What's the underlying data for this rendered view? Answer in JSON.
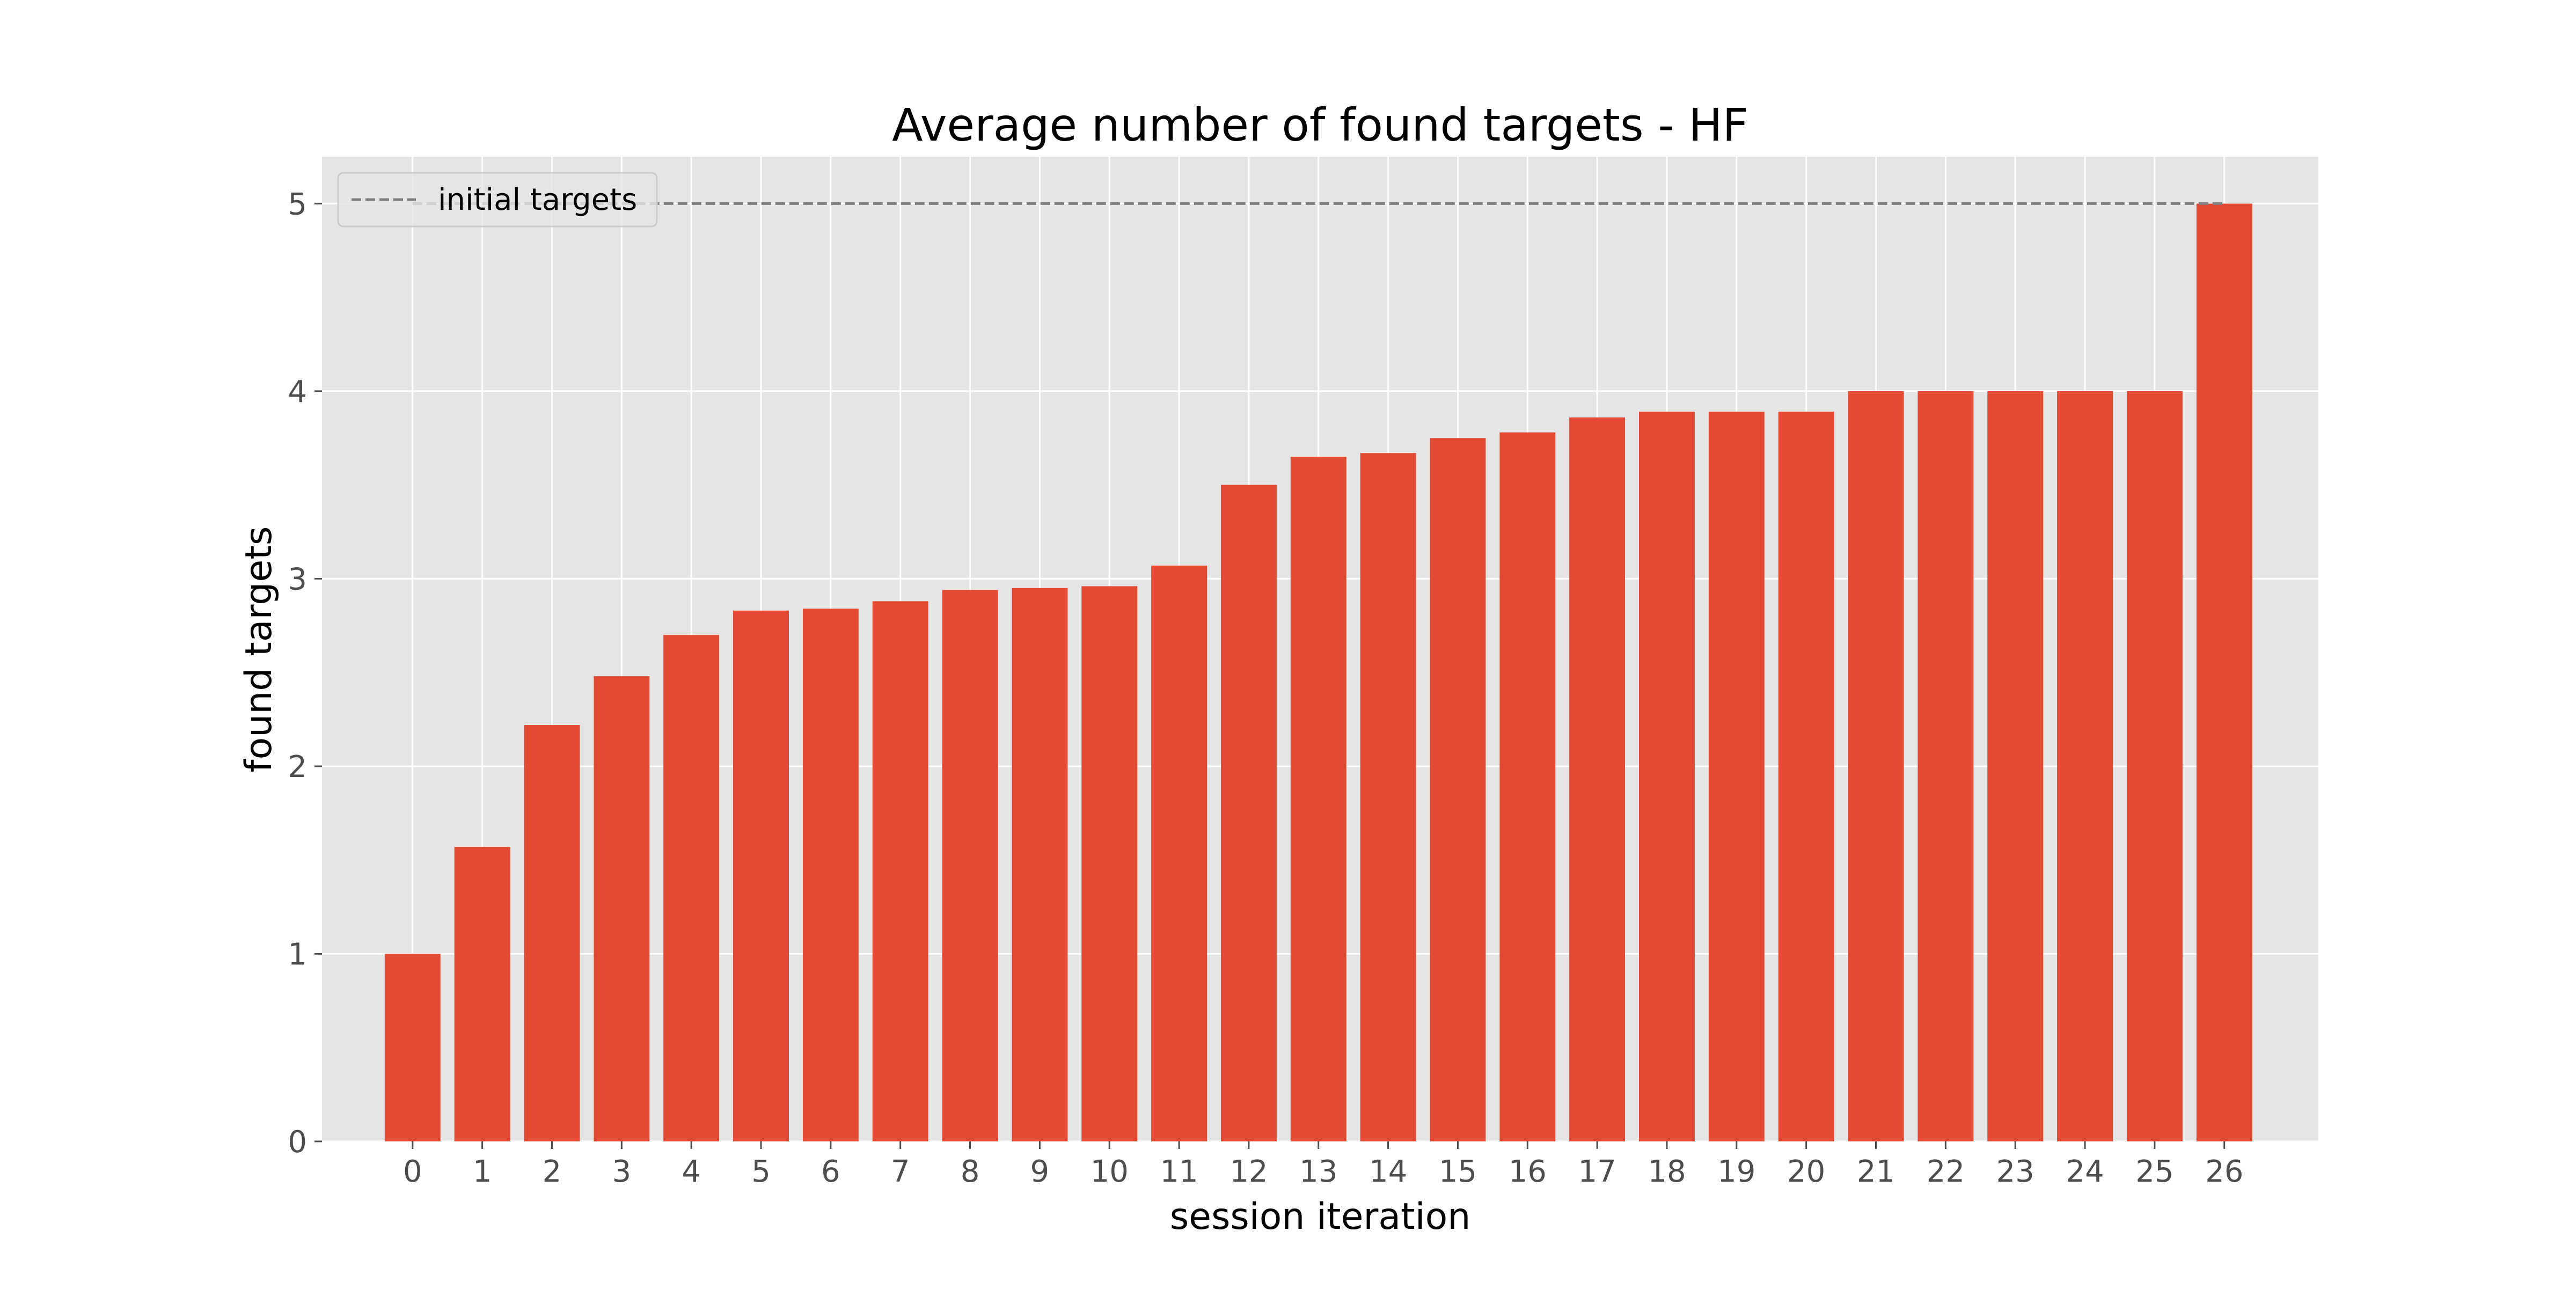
{
  "chart_data": {
    "type": "bar",
    "title": "Average number of found targets - HF",
    "xlabel": "session iteration",
    "ylabel": "found targets",
    "categories": [
      "0",
      "1",
      "2",
      "3",
      "4",
      "5",
      "6",
      "7",
      "8",
      "9",
      "10",
      "11",
      "12",
      "13",
      "14",
      "15",
      "16",
      "17",
      "18",
      "19",
      "20",
      "21",
      "22",
      "23",
      "24",
      "25",
      "26"
    ],
    "values": [
      1.0,
      1.57,
      2.22,
      2.48,
      2.7,
      2.83,
      2.84,
      2.88,
      2.94,
      2.95,
      2.96,
      3.07,
      3.5,
      3.65,
      3.67,
      3.75,
      3.78,
      3.86,
      3.89,
      3.89,
      3.89,
      4.0,
      4.0,
      4.0,
      4.0,
      4.0,
      5.0
    ],
    "yticks": [
      0,
      1,
      2,
      3,
      4,
      5
    ],
    "ylim": [
      0,
      5.25
    ],
    "grid": true,
    "bar_color": "#E24A33",
    "background_color": "#E5E5E5",
    "reference_line": {
      "label": "initial targets",
      "value": 5,
      "style": "dashed",
      "color": "#808080"
    },
    "legend": {
      "placement": "top-left",
      "entries": [
        "initial targets"
      ]
    }
  }
}
